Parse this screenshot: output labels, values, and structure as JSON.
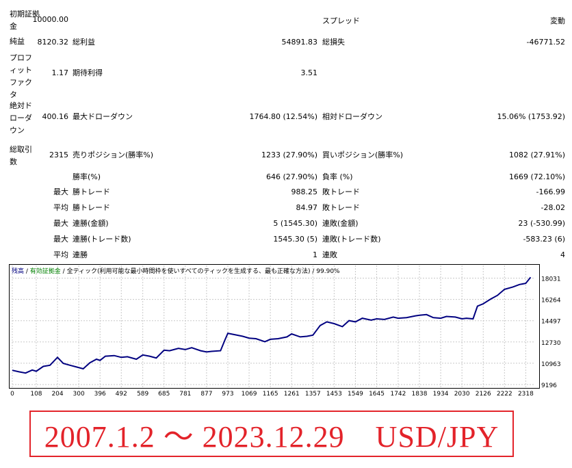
{
  "stats": {
    "row1": {
      "label": "初期証拠金",
      "value": "10000.00",
      "label2": "スプレッド",
      "value2": "変動"
    },
    "row2": {
      "label": "純益",
      "value": "8120.32",
      "label1": "総利益",
      "value1": "54891.83",
      "label2": "総損失",
      "value2": "-46771.52"
    },
    "row3": {
      "label": "プロフィットファクタ",
      "value": "1.17",
      "label1": "期待利得",
      "value1": "3.51"
    },
    "row4": {
      "label": "絶対ドローダウン",
      "value": "400.16",
      "label1": "最大ドローダウン",
      "value1": "1764.80 (12.54%)",
      "label2": "相対ドローダウン",
      "value2": "15.06% (1753.92)"
    },
    "row5": {
      "label": "総取引数",
      "value": "2315",
      "label1": "売りポジション(勝率%)",
      "value1": "1233 (27.90%)",
      "label2": "買いポジション(勝率%)",
      "value2": "1082 (27.91%)"
    },
    "row6": {
      "label1": "勝率(%)",
      "value1": "646 (27.90%)",
      "label2": "負率 (%)",
      "value2": "1669 (72.10%)"
    },
    "row7": {
      "sub": "最大",
      "label1": "勝トレード",
      "value1": "988.25",
      "label2": "敗トレード",
      "value2": "-166.99"
    },
    "row8": {
      "sub": "平均",
      "label1": "勝トレード",
      "value1": "84.97",
      "label2": "敗トレード",
      "value2": "-28.02"
    },
    "row9": {
      "sub": "最大",
      "label1": "連勝(金額)",
      "value1": "5 (1545.30)",
      "label2": "連敗(金額)",
      "value2": "23 (-530.99)"
    },
    "row10": {
      "sub": "最大",
      "label1": "連勝(トレード数)",
      "value1": "1545.30 (5)",
      "label2": "連敗(トレード数)",
      "value2": "-583.23 (6)"
    },
    "row11": {
      "sub": "平均",
      "label1": "連勝",
      "value1": "1",
      "label2": "連敗",
      "value2": "4"
    }
  },
  "chart_data": {
    "type": "line",
    "legend": {
      "a": "残高",
      "sep1": " / ",
      "b": "有効証拠金",
      "sep2": " / ",
      "c": "全ティック(利用可能な最小時間枠を使いすべてのティックを生成する、最も正確な方法)",
      "sep3": " / ",
      "d": "99.90%"
    },
    "x_ticks": [
      0,
      108,
      204,
      300,
      396,
      492,
      589,
      685,
      781,
      877,
      973,
      1069,
      1165,
      1261,
      1357,
      1453,
      1549,
      1645,
      1742,
      1838,
      1934,
      2030,
      2126,
      2222,
      2318
    ],
    "y_ticks": [
      9196,
      10963,
      12730,
      14497,
      16264,
      18031
    ],
    "xlim": [
      0,
      2360
    ],
    "ylim": [
      9196,
      18400
    ],
    "line_color": "#000080",
    "series": [
      {
        "x": [
          0,
          30,
          60,
          90,
          108,
          140,
          170,
          204,
          230,
          260,
          290,
          320,
          350,
          380,
          396,
          420,
          460,
          492,
          520,
          560,
          589,
          620,
          650,
          685,
          710,
          750,
          781,
          810,
          850,
          877,
          900,
          940,
          960,
          973,
          1000,
          1040,
          1069,
          1100,
          1140,
          1165,
          1200,
          1240,
          1261,
          1300,
          1330,
          1357,
          1390,
          1420,
          1453,
          1490,
          1520,
          1549,
          1580,
          1620,
          1645,
          1680,
          1720,
          1742,
          1780,
          1820,
          1838,
          1870,
          1900,
          1934,
          1960,
          2000,
          2030,
          2050,
          2080,
          2100,
          2126,
          2160,
          2190,
          2222,
          2260,
          2290,
          2318,
          2340
        ],
        "y": [
          10380,
          10250,
          10150,
          10400,
          10300,
          10700,
          10800,
          11450,
          10950,
          10800,
          10650,
          10500,
          11000,
          11300,
          11200,
          11550,
          11600,
          11450,
          11500,
          11300,
          11650,
          11550,
          11400,
          12050,
          12000,
          12200,
          12100,
          12250,
          12000,
          11900,
          11950,
          12000,
          12900,
          13450,
          13350,
          13200,
          13050,
          13000,
          12750,
          12950,
          13000,
          13150,
          13400,
          13150,
          13200,
          13300,
          14100,
          14400,
          14250,
          14000,
          14500,
          14400,
          14700,
          14550,
          14650,
          14600,
          14800,
          14700,
          14750,
          14900,
          14950,
          15000,
          14750,
          14700,
          14850,
          14800,
          14650,
          14700,
          14650,
          15700,
          15900,
          16300,
          16600,
          17100,
          17300,
          17500,
          17600,
          18100
        ]
      }
    ]
  },
  "caption": "2007.1.2 ～ 2023.12.29　USD/JPY"
}
